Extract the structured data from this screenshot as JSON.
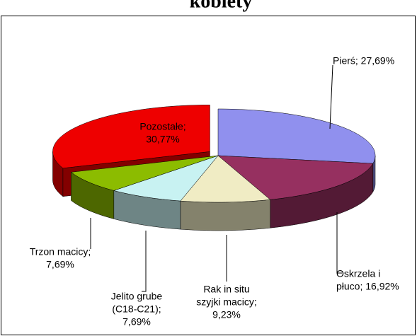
{
  "chart_data": {
    "type": "pie3d",
    "title": "kobiety",
    "values": [
      27.69,
      16.92,
      9.23,
      7.69,
      7.69,
      30.77
    ],
    "value_labels": [
      [
        "Pierś; 27,69%"
      ],
      [
        "Oskrzela i",
        "płuco; 16,92%"
      ],
      [
        "Rak in situ",
        "szyjki macicy;",
        "9,23%"
      ],
      [
        "Jelito grube",
        "(C18-C21);",
        "7,69%"
      ],
      [
        "Trzon macicy;",
        "7,69%"
      ],
      [
        "Pozostałe;",
        "30,77%"
      ]
    ],
    "colors": [
      "#9090ee",
      "#963060",
      "#f0ecc4",
      "#c8f2f2",
      "#8cbc00",
      "#ee0000"
    ],
    "exploded": [
      5
    ]
  }
}
